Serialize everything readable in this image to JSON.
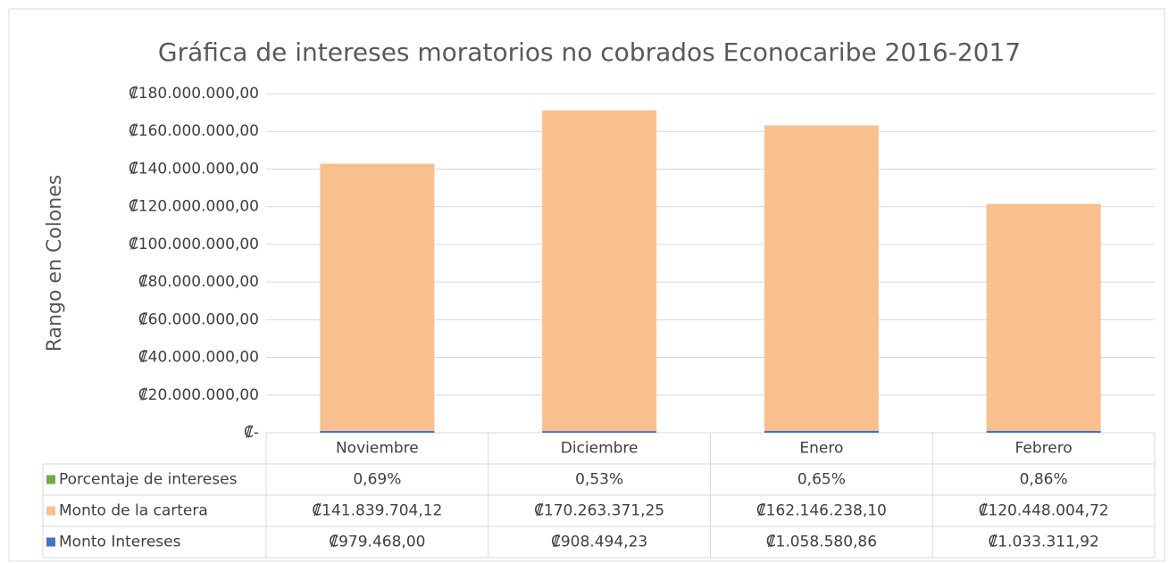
{
  "chart_data": {
    "type": "bar",
    "stacked": true,
    "title": "Gráfica de intereses moratorios no cobrados Econocaribe  2016-2017",
    "y_label": "Rango en Colones",
    "categories": [
      "Noviembre",
      "Diciembre",
      "Enero",
      "Febrero"
    ],
    "series": [
      {
        "name": "Porcentaje de intereses",
        "color": "#70ad47",
        "values": [
          0.69,
          0.53,
          0.65,
          0.86
        ],
        "value_labels": [
          "0,69%",
          "0,53%",
          "0,65%",
          "0,86%"
        ]
      },
      {
        "name": "Monto de la cartera",
        "color": "#f8c08f",
        "values": [
          141839704.12,
          170263371.25,
          162146238.1,
          120448004.72
        ],
        "value_labels": [
          "₡141.839.704,12",
          "₡170.263.371,25",
          "₡162.146.238,10",
          "₡120.448.004,72"
        ]
      },
      {
        "name": "Monto Intereses",
        "color": "#4472c4",
        "values": [
          979468.0,
          908494.23,
          1058580.86,
          1033311.92
        ],
        "value_labels": [
          "₡979.468,00",
          "₡908.494,23",
          "₡1.058.580,86",
          "₡1.033.311,92"
        ]
      }
    ],
    "ylim": [
      0,
      180000000
    ],
    "yticks": [
      {
        "value": 0,
        "label": "₡-"
      },
      {
        "value": 20000000,
        "label": "₡20.000.000,00"
      },
      {
        "value": 40000000,
        "label": "₡40.000.000,00"
      },
      {
        "value": 60000000,
        "label": "₡60.000.000,00"
      },
      {
        "value": 80000000,
        "label": "₡80.000.000,00"
      },
      {
        "value": 100000000,
        "label": "₡100.000.000,00"
      },
      {
        "value": 120000000,
        "label": "₡120.000.000,00"
      },
      {
        "value": 140000000,
        "label": "₡140.000.000,00"
      },
      {
        "value": 160000000,
        "label": "₡160.000.000,00"
      },
      {
        "value": 180000000,
        "label": "₡180.000.000,00"
      }
    ],
    "grid": true
  }
}
